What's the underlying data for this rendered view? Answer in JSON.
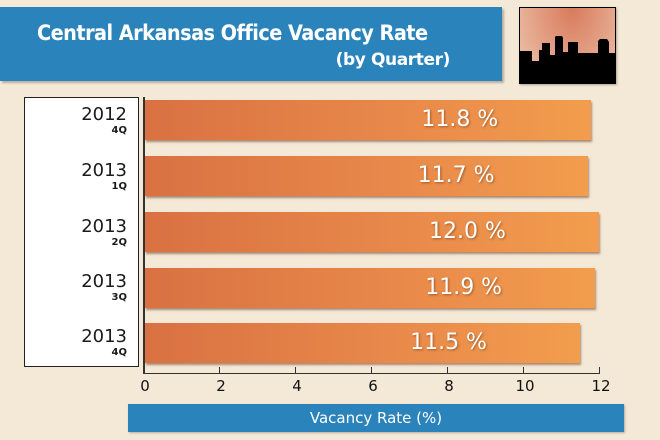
{
  "header": {
    "title": "Central Arkansas Office Vacancy Rate",
    "subtitle": "(by Quarter)",
    "icon": "city-skyline-icon"
  },
  "colors": {
    "title_bg": "#2a84bb",
    "bar_start": "#d97142",
    "bar_end": "#f29d4d",
    "background": "#f4e8d7"
  },
  "chart_data": {
    "type": "bar",
    "orientation": "horizontal",
    "title": "Central Arkansas Office Vacancy Rate (by Quarter)",
    "categories": [
      "2012 4Q",
      "2013 1Q",
      "2013 2Q",
      "2013 3Q",
      "2013 4Q"
    ],
    "category_parts": [
      {
        "year": "2012",
        "quarter": "4Q"
      },
      {
        "year": "2013",
        "quarter": "1Q"
      },
      {
        "year": "2013",
        "quarter": "2Q"
      },
      {
        "year": "2013",
        "quarter": "3Q"
      },
      {
        "year": "2013",
        "quarter": "4Q"
      }
    ],
    "values": [
      11.8,
      11.7,
      12.0,
      11.9,
      11.5
    ],
    "value_labels": [
      "11.8 %",
      "11.7 %",
      "12.0 %",
      "11.9 %",
      "11.5 %"
    ],
    "xlabel": "Vacancy Rate (%)",
    "ylabel": "",
    "xlim": [
      0,
      12
    ],
    "xticks": [
      "0",
      "2",
      "4",
      "6",
      "8",
      "10",
      "12"
    ],
    "grid": false,
    "legend": null
  }
}
